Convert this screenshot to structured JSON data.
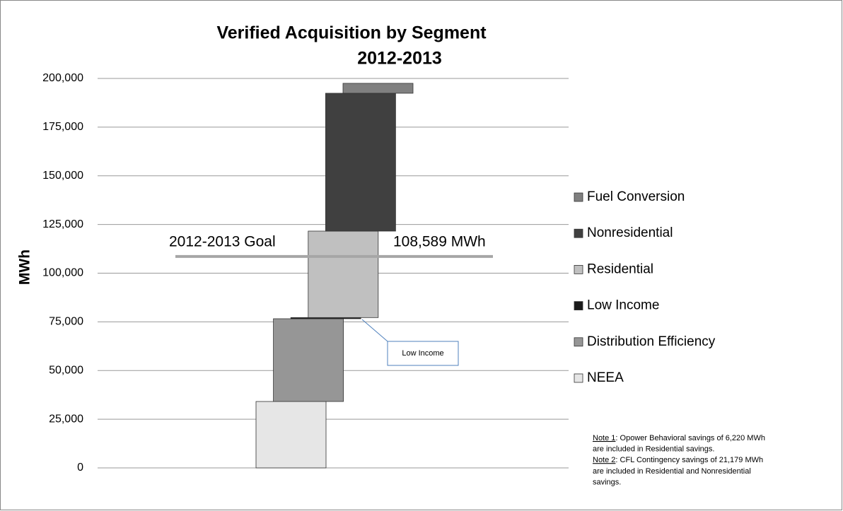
{
  "chart_data": {
    "type": "waterfall",
    "title": "Verified Acquisition by Segment",
    "subtitle": "2012-2013",
    "y_label": "MWh",
    "categories": [
      "NEEA",
      "Distribution Efficiency",
      "Low Income",
      "Residential",
      "Nonresidential",
      "Fuel Conversion"
    ],
    "values": [
      34100,
      42500,
      600,
      44400,
      70800,
      5100
    ],
    "colors": [
      "#e6e6e6",
      "#969696",
      "#1a1a1a",
      "#c0c0c0",
      "#404040",
      "#808080"
    ],
    "ylim": [
      0,
      200000
    ],
    "yticks": [
      0,
      {
        "value": 25000,
        "label": "25,000"
      },
      {
        "value": 50000,
        "label": "50,000"
      },
      {
        "value": 75000,
        "label": "75,000"
      },
      {
        "value": 100000,
        "label": "100,000"
      },
      {
        "value": 125000,
        "label": "125,000"
      },
      {
        "value": 150000,
        "label": "150,000"
      },
      {
        "value": 175000,
        "label": "175,000"
      },
      {
        "value": 200000,
        "label": "200,000"
      }
    ],
    "grid": true,
    "legend": "right",
    "goal": {
      "name": "2012-2013 Goal",
      "value": 108589,
      "label": "108,589 MWh",
      "color": "#a6a6a6"
    },
    "callout": "Low Income",
    "notes": [
      {
        "label": "Note 1",
        "lines": [
          ":  Opower Behavioral savings of 6,220 MWh",
          "are included in  Residential savings."
        ]
      },
      {
        "label": "Note 2",
        "lines": [
          ":  CFL Contingency savings of 21,179 MWh",
          "are included in  Residential and Nonresidential",
          "savings."
        ]
      }
    ]
  }
}
